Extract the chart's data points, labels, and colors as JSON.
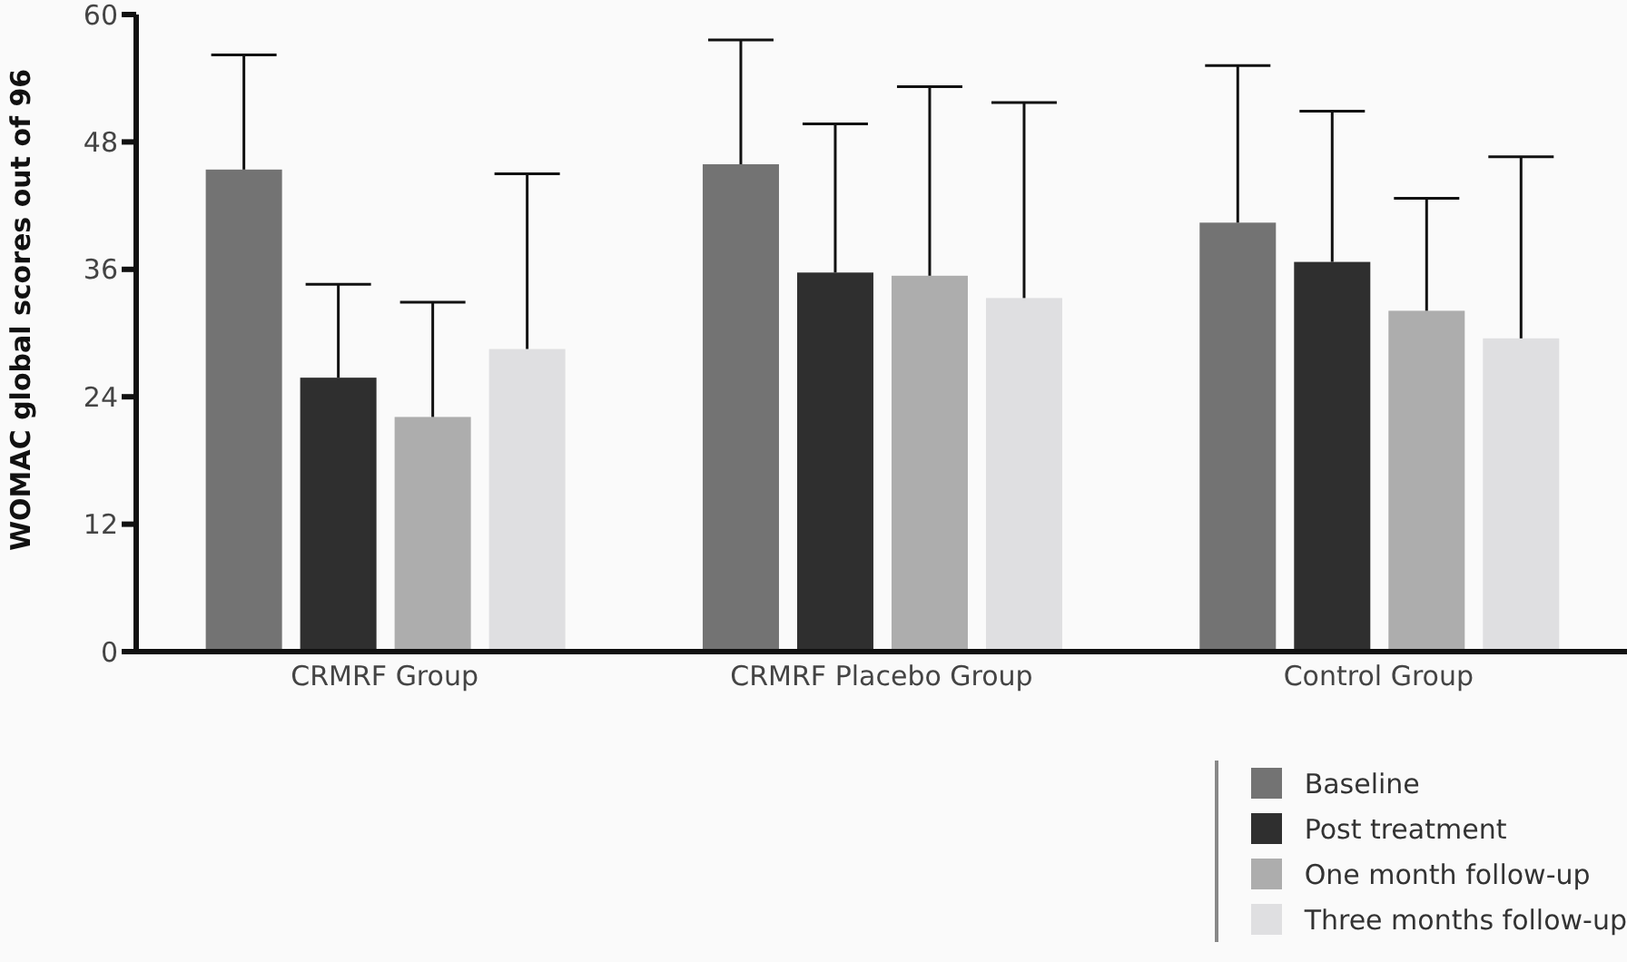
{
  "chart_data": {
    "type": "bar",
    "ylabel": "WOMAC global scores out of 96",
    "categories": [
      "CRMRF Group",
      "CRMRF Placebo Group",
      "Control Group"
    ],
    "series": [
      {
        "name": "Baseline",
        "color": "#737373",
        "values": [
          45.4,
          45.9,
          40.4
        ],
        "errors": [
          [
            45.4,
            56.2
          ],
          [
            45.9,
            57.6
          ],
          [
            40.4,
            55.2
          ]
        ]
      },
      {
        "name": "Post treatment",
        "color": "#2f2f2f",
        "values": [
          25.8,
          35.7,
          36.7
        ],
        "errors": [
          [
            25.8,
            34.6
          ],
          [
            35.7,
            49.7
          ],
          [
            36.7,
            50.9
          ]
        ]
      },
      {
        "name": "One month follow-up",
        "color": "#adadad",
        "values": [
          22.1,
          35.4,
          32.1
        ],
        "errors": [
          [
            22.1,
            32.9
          ],
          [
            35.4,
            53.2
          ],
          [
            32.1,
            42.7
          ]
        ]
      },
      {
        "name": "Three months follow-up",
        "color": "#dfdfe1",
        "values": [
          28.5,
          33.3,
          29.5
        ],
        "errors": [
          [
            28.5,
            45.0
          ],
          [
            33.3,
            51.7
          ],
          [
            29.5,
            46.6
          ]
        ]
      }
    ],
    "ylim": [
      0,
      60
    ],
    "yticks": [
      0,
      12,
      24,
      36,
      48,
      60
    ],
    "grid": false,
    "legend": "bottom right"
  }
}
